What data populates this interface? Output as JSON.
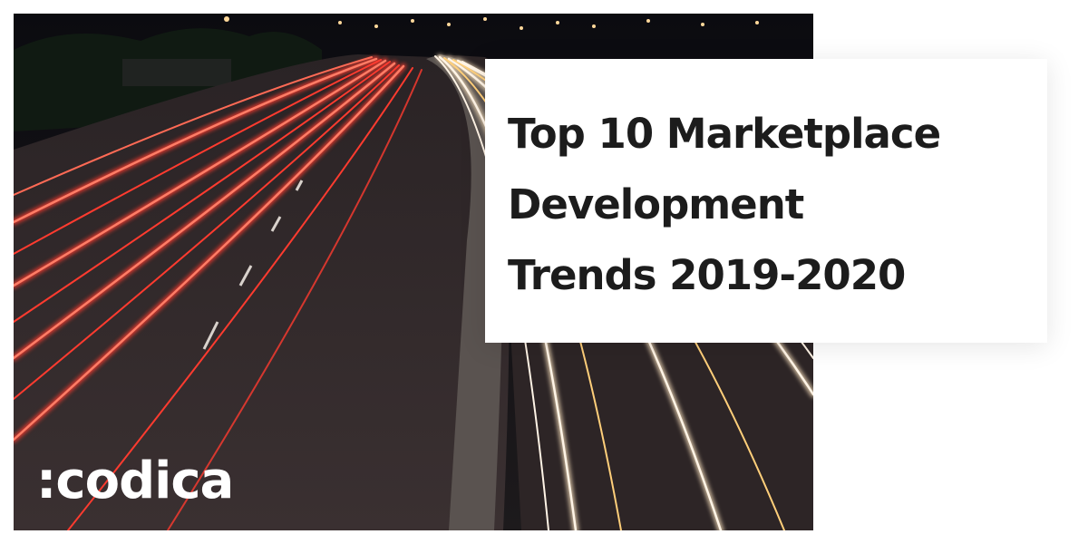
{
  "title": {
    "lines": [
      "Top 10 Marketplace",
      "Development",
      "Trends 2019-2020"
    ]
  },
  "brand": {
    "logo_text": ":codica"
  },
  "colors": {
    "background": "#ffffff",
    "title_text": "#1c1c1c",
    "logo_text": "#ffffff",
    "taillight_red": "#ff3b2f",
    "headlight_white": "#fff4e6"
  },
  "photo": {
    "icon": "night-highway-light-trails"
  }
}
